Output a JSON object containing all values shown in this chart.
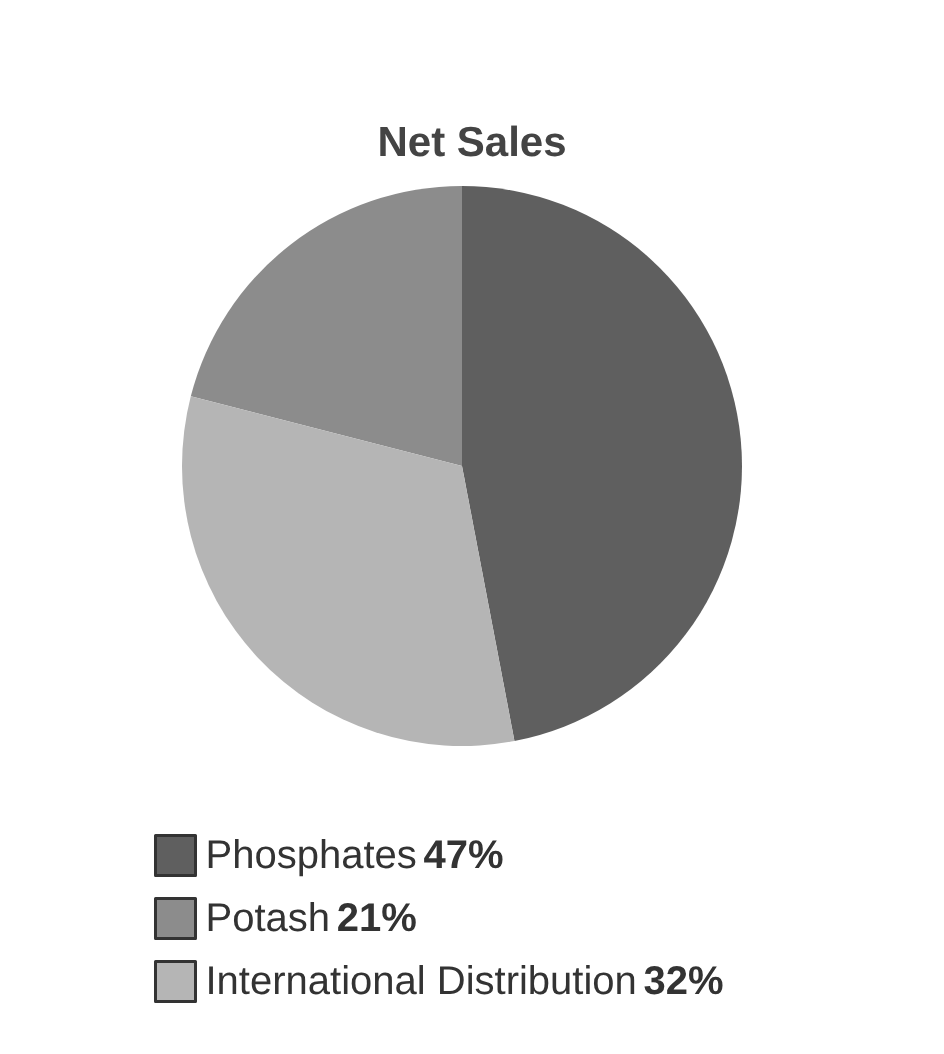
{
  "chart_data": {
    "type": "pie",
    "title": "Net Sales",
    "categories": [
      "Phosphates",
      "Potash",
      "International Distribution"
    ],
    "values": [
      47,
      21,
      32
    ],
    "colors": [
      "#5f5f5f",
      "#8c8c8c",
      "#b5b5b5"
    ],
    "value_labels": [
      "47%",
      "21%",
      "32%"
    ],
    "legend": "bottom"
  }
}
